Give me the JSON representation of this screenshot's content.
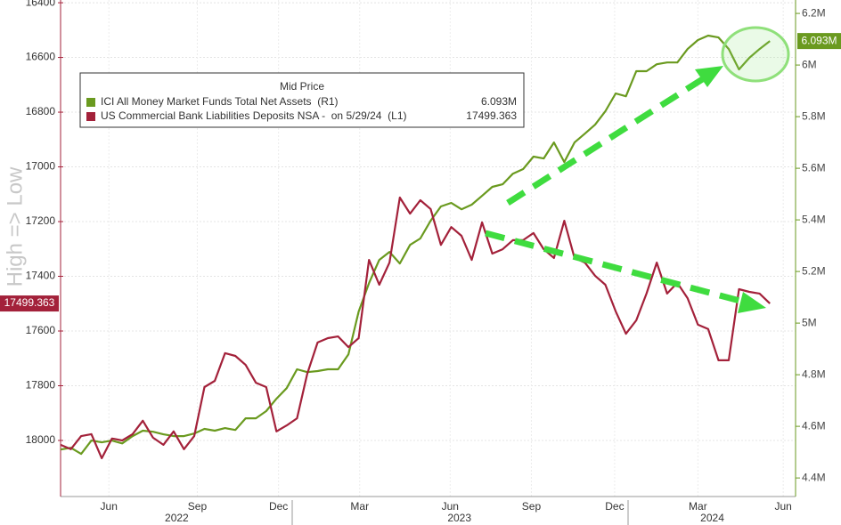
{
  "chart_data": {
    "type": "line",
    "legend_title": "Mid Price",
    "ylabel": "High => Low",
    "y_inverted": true,
    "xlim": [
      0,
      71.5
    ],
    "xticks": [
      {
        "value": 4.7,
        "label": "Jun"
      },
      {
        "value": 13.3,
        "label": "Sep"
      },
      {
        "value": 21.2,
        "label": "Dec"
      },
      {
        "value": 29.1,
        "label": "Mar"
      },
      {
        "value": 37.9,
        "label": "Jun"
      },
      {
        "value": 45.8,
        "label": "Sep"
      },
      {
        "value": 53.9,
        "label": "Dec"
      },
      {
        "value": 62.0,
        "label": "Mar"
      },
      {
        "value": 70.3,
        "label": "Jun"
      }
    ],
    "year_ticks": [
      {
        "value": 11.3,
        "label": "2022"
      },
      {
        "value": 38.8,
        "label": "2023"
      },
      {
        "value": 63.4,
        "label": "2024"
      }
    ],
    "ylim": [
      16390,
      18205
    ],
    "yticks": [
      16400,
      16600,
      16800,
      17000,
      17200,
      17400,
      17600,
      17800,
      18000
    ],
    "y2lim": [
      4.328,
      6.252
    ],
    "y2ticks": [
      {
        "value": 6.2,
        "label": "6.2M"
      },
      {
        "value": 6.0,
        "label": "6M"
      },
      {
        "value": 5.8,
        "label": "5.8M"
      },
      {
        "value": 5.6,
        "label": "5.6M"
      },
      {
        "value": 5.4,
        "label": "5.4M"
      },
      {
        "value": 5.2,
        "label": "5.2M"
      },
      {
        "value": 5.0,
        "label": "5M"
      },
      {
        "value": 4.8,
        "label": "4.8M"
      },
      {
        "value": 4.6,
        "label": "4.6M"
      },
      {
        "value": 4.4,
        "label": "4.4M"
      }
    ],
    "grid": true,
    "series": [
      {
        "name": "ICI All Money Market Funds Total Net Assets  (R1)",
        "color": "#6a9a1f",
        "axis": "y2",
        "last_label": "6.093M",
        "values": [
          4.51,
          4.517,
          4.493,
          4.545,
          4.538,
          4.545,
          4.534,
          4.562,
          4.583,
          4.579,
          4.569,
          4.562,
          4.562,
          4.572,
          4.59,
          4.583,
          4.593,
          4.586,
          4.631,
          4.631,
          4.659,
          4.707,
          4.748,
          4.821,
          4.81,
          4.814,
          4.821,
          4.821,
          4.879,
          5.045,
          5.155,
          5.245,
          5.276,
          5.231,
          5.303,
          5.328,
          5.397,
          5.452,
          5.466,
          5.441,
          5.459,
          5.493,
          5.528,
          5.538,
          5.579,
          5.597,
          5.645,
          5.638,
          5.7,
          5.624,
          5.7,
          5.734,
          5.769,
          5.821,
          5.89,
          5.879,
          5.976,
          5.976,
          6.003,
          6.01,
          6.01,
          6.062,
          6.097,
          6.114,
          6.107,
          6.062,
          5.983,
          6.028,
          6.062,
          6.093
        ]
      },
      {
        "name": "US Commercial Bank Liabilities Deposits NSA -  on 5/29/24  (L1)",
        "color": "#a3213a",
        "axis": "y",
        "last_label": "17499.363",
        "values": [
          18016,
          18032,
          17984,
          17977,
          18065,
          17993,
          18000,
          17977,
          17928,
          17990,
          18016,
          17967,
          18032,
          17984,
          17805,
          17782,
          17681,
          17691,
          17724,
          17789,
          17805,
          17967,
          17945,
          17919,
          17756,
          17642,
          17626,
          17620,
          17659,
          17626,
          17340,
          17431,
          17350,
          17112,
          17171,
          17122,
          17154,
          17285,
          17220,
          17252,
          17340,
          17203,
          17317,
          17301,
          17268,
          17268,
          17242,
          17301,
          17333,
          17197,
          17333,
          17350,
          17398,
          17431,
          17528,
          17610,
          17561,
          17463,
          17350,
          17463,
          17424,
          17480,
          17577,
          17593,
          17707,
          17707,
          17447,
          17457,
          17463,
          17499.363
        ]
      }
    ]
  }
}
